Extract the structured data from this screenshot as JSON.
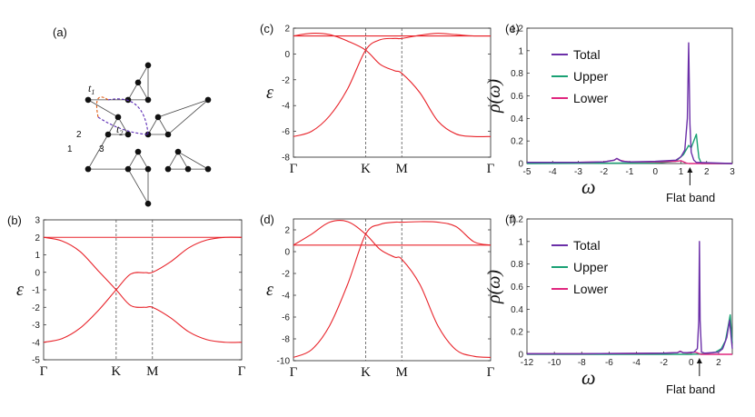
{
  "figure": {
    "panel_labels": {
      "a": "(a)",
      "b": "(b)",
      "c": "(c)",
      "d": "(d)",
      "e": "(e)",
      "f": "(f)"
    },
    "lattice": {
      "hop_labels": {
        "t1": "t",
        "t1_sub": "1",
        "t2": "t",
        "t2_sub": "2"
      },
      "site_labels": [
        "1",
        "2",
        "3"
      ],
      "colors": {
        "bond": "#444444",
        "site": "#111111",
        "t1": "#e05a10",
        "t2": "#5b2bb5"
      }
    },
    "colors": {
      "band": "#e8232a",
      "total": "#6b2fa8",
      "upper": "#1aa174",
      "lower": "#e0267f",
      "vline": "#555555"
    },
    "annotations": {
      "flat_band_e": "Flat band",
      "flat_band_f": "Flat band"
    }
  },
  "chart_data": [
    {
      "id": "b",
      "type": "line",
      "ylabel": "ε",
      "x_ticks": [
        "Γ",
        "K",
        "M",
        "Γ"
      ],
      "ylim": [
        -5,
        3
      ],
      "yticks": [
        -5,
        -4,
        -3,
        -2,
        -1,
        0,
        1,
        2,
        3
      ],
      "series": [
        {
          "x": [
            0,
            0.25,
            0.5,
            0.75,
            1.0,
            1.2,
            1.4,
            1.5,
            1.75,
            2.0,
            2.25,
            2.5,
            2.73
          ],
          "values": [
            -4,
            -3.8,
            -3.2,
            -2.2,
            -1,
            -0.1,
            -0.02,
            0,
            0.6,
            1.4,
            1.85,
            2.0,
            2.0
          ]
        },
        {
          "x": [
            0,
            0.25,
            0.5,
            0.75,
            1.0,
            1.2,
            1.4,
            1.5,
            1.75,
            2.0,
            2.25,
            2.5,
            2.73
          ],
          "values": [
            2.0,
            1.8,
            1.2,
            0.1,
            -1,
            -1.9,
            -2.0,
            -2.0,
            -2.6,
            -3.4,
            -3.85,
            -4.0,
            -4.0
          ]
        },
        {
          "x": [
            0,
            2.73
          ],
          "values": [
            2,
            2
          ]
        }
      ],
      "vlines": [
        1.0,
        1.5
      ],
      "grid": false
    },
    {
      "id": "c",
      "type": "line",
      "ylabel": "ε",
      "x_ticks": [
        "Γ",
        "K",
        "M",
        "Γ"
      ],
      "ylim": [
        -8,
        2
      ],
      "yticks": [
        -8,
        -6,
        -4,
        -2,
        0,
        2
      ],
      "series": [
        {
          "x": [
            0,
            0.25,
            0.5,
            0.75,
            1.0,
            1.2,
            1.4,
            1.5,
            1.75,
            2.0,
            2.25,
            2.5,
            2.73
          ],
          "values": [
            -6.4,
            -6.0,
            -4.8,
            -2.7,
            0.3,
            1.1,
            1.2,
            1.2,
            1.45,
            1.6,
            1.5,
            1.4,
            1.4
          ]
        },
        {
          "x": [
            0,
            0.25,
            0.5,
            0.75,
            1.0,
            1.2,
            1.4,
            1.5,
            1.75,
            2.0,
            2.25,
            2.5,
            2.73
          ],
          "values": [
            1.4,
            1.6,
            1.5,
            1.0,
            0.3,
            -0.8,
            -1.3,
            -1.5,
            -3.0,
            -5.2,
            -6.2,
            -6.4,
            -6.4
          ]
        },
        {
          "x": [
            0,
            2.73
          ],
          "values": [
            1.4,
            1.4
          ]
        }
      ],
      "vlines": [
        1.0,
        1.5
      ],
      "grid": false
    },
    {
      "id": "d",
      "type": "line",
      "ylabel": "ε",
      "x_ticks": [
        "Γ",
        "K",
        "M",
        "Γ"
      ],
      "ylim": [
        -10,
        3
      ],
      "yticks": [
        -10,
        -8,
        -6,
        -4,
        -2,
        0,
        2
      ],
      "series": [
        {
          "x": [
            0,
            0.25,
            0.5,
            0.75,
            1.0,
            1.2,
            1.4,
            1.5,
            1.75,
            2.0,
            2.25,
            2.5,
            2.73
          ],
          "values": [
            -9.7,
            -9.0,
            -6.8,
            -3.0,
            1.6,
            2.5,
            2.7,
            2.7,
            2.75,
            2.7,
            2.3,
            0.9,
            0.6
          ]
        },
        {
          "x": [
            0,
            0.25,
            0.5,
            0.75,
            1.0,
            1.2,
            1.4,
            1.5,
            1.75,
            2.0,
            2.25,
            2.5,
            2.73
          ],
          "values": [
            0.6,
            1.6,
            2.7,
            2.75,
            1.6,
            0.2,
            -0.5,
            -0.7,
            -3.0,
            -6.8,
            -9.0,
            -9.6,
            -9.7
          ]
        },
        {
          "x": [
            0,
            2.73
          ],
          "values": [
            0.6,
            0.6
          ]
        }
      ],
      "vlines": [
        1.0,
        1.5
      ],
      "grid": false
    },
    {
      "id": "e",
      "type": "line",
      "ylabel": "ρ(ω)",
      "xlabel": "ω",
      "xlim": [
        -5,
        3
      ],
      "ylim": [
        0,
        1.2
      ],
      "xticks": [
        -5,
        -4,
        -3,
        -2,
        -1,
        0,
        1,
        2,
        3
      ],
      "yticks": [
        0,
        0.2,
        0.4,
        0.6,
        0.8,
        1,
        1.2
      ],
      "legend": {
        "position": "top-right",
        "entries": [
          "Total",
          "Upper",
          "Lower"
        ]
      },
      "series": [
        {
          "name": "Total",
          "x": [
            -5,
            -3,
            -2,
            -1.6,
            -1.5,
            -1.3,
            -1,
            0,
            0.8,
            1.0,
            1.15,
            1.25,
            1.3,
            1.35,
            1.4,
            1.5,
            1.6,
            3
          ],
          "values": [
            0.01,
            0.01,
            0.015,
            0.03,
            0.045,
            0.02,
            0.015,
            0.02,
            0.03,
            0.06,
            0.12,
            0.4,
            1.07,
            0.35,
            0.1,
            0.03,
            0.01,
            0
          ]
        },
        {
          "name": "Upper",
          "x": [
            -5,
            0,
            0.8,
            1.1,
            1.3,
            1.4,
            1.5,
            1.6,
            1.65,
            1.7,
            1.8,
            3
          ],
          "values": [
            0,
            0.005,
            0.02,
            0.08,
            0.16,
            0.14,
            0.2,
            0.26,
            0.15,
            0.05,
            0,
            0
          ]
        },
        {
          "name": "Lower",
          "x": [
            -5,
            -3,
            -2,
            -1.6,
            -1.5,
            -1.4,
            -1.2,
            -1,
            0,
            0.8,
            1.0,
            1.1,
            1.2,
            1.3,
            3
          ],
          "values": [
            0.01,
            0.01,
            0.015,
            0.03,
            0.045,
            0.03,
            0.02,
            0.015,
            0.015,
            0.02,
            0.025,
            0.015,
            0.005,
            0,
            0
          ]
        }
      ],
      "arrow_at": 1.35
    },
    {
      "id": "f",
      "type": "line",
      "ylabel": "ρ(ω)",
      "xlabel": "ω",
      "xlim": [
        -12,
        3
      ],
      "ylim": [
        0,
        1.2
      ],
      "xticks": [
        -12,
        -10,
        -8,
        -6,
        -4,
        -2,
        0,
        2
      ],
      "yticks": [
        0,
        0.2,
        0.4,
        0.6,
        0.8,
        1,
        1.2
      ],
      "legend": {
        "position": "top-right",
        "entries": [
          "Total",
          "Upper",
          "Lower"
        ]
      },
      "series": [
        {
          "name": "Total",
          "x": [
            -12,
            -8,
            -4,
            -2,
            -1,
            -0.8,
            -0.6,
            -0.3,
            0.2,
            0.45,
            0.55,
            0.6,
            0.65,
            0.75,
            1.0,
            2.0,
            2.3,
            2.6,
            2.8,
            3
          ],
          "values": [
            0.005,
            0.005,
            0.008,
            0.01,
            0.015,
            0.025,
            0.015,
            0.015,
            0.02,
            0.05,
            0.3,
            1.0,
            0.3,
            0.02,
            0.01,
            0.02,
            0.05,
            0.15,
            0.3,
            0.05
          ]
        },
        {
          "name": "Upper",
          "x": [
            -12,
            0,
            1.0,
            1.8,
            2.2,
            2.5,
            2.7,
            2.85,
            3
          ],
          "values": [
            0,
            0,
            0.005,
            0.02,
            0.05,
            0.12,
            0.25,
            0.35,
            0.1
          ]
        },
        {
          "name": "Lower",
          "x": [
            -12,
            -8,
            -4,
            -2,
            -1,
            -0.8,
            -0.6,
            -0.3,
            0,
            0.3,
            0.5,
            0.7,
            3
          ],
          "values": [
            0.005,
            0.005,
            0.008,
            0.01,
            0.015,
            0.028,
            0.015,
            0.012,
            0.015,
            0.02,
            0.01,
            0,
            0
          ]
        }
      ],
      "arrow_at": 0.6
    }
  ]
}
